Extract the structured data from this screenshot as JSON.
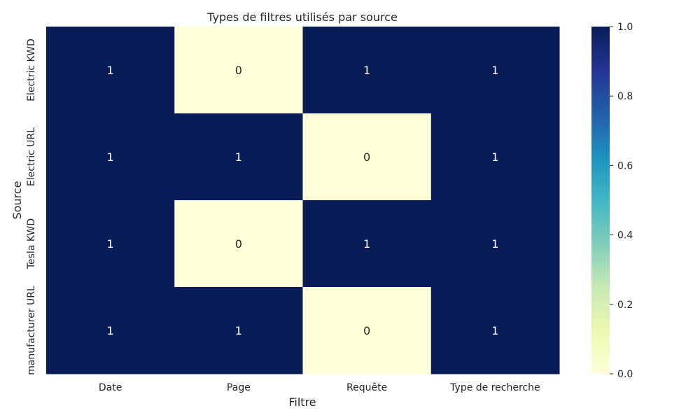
{
  "chart_data": {
    "type": "heatmap",
    "title": "Types de filtres utilisés par source",
    "xlabel": "Filtre",
    "ylabel": "Source",
    "x_categories": [
      "Date",
      "Page",
      "Requête",
      "Type de recherche"
    ],
    "y_categories": [
      "Electric KWD",
      "Electric URL",
      "Tesla KWD",
      "manufacturer URL"
    ],
    "values": [
      [
        1,
        0,
        1,
        1
      ],
      [
        1,
        1,
        0,
        1
      ],
      [
        1,
        0,
        1,
        1
      ],
      [
        1,
        1,
        0,
        1
      ]
    ],
    "annotations": true,
    "colorbar": {
      "range": [
        0.0,
        1.0
      ],
      "ticks": [
        "0.0",
        "0.2",
        "0.4",
        "0.6",
        "0.8",
        "1.0"
      ],
      "colormap": "YlGnBu",
      "low_color": "#ffffd9",
      "high_color": "#081d58"
    },
    "grid": false
  }
}
